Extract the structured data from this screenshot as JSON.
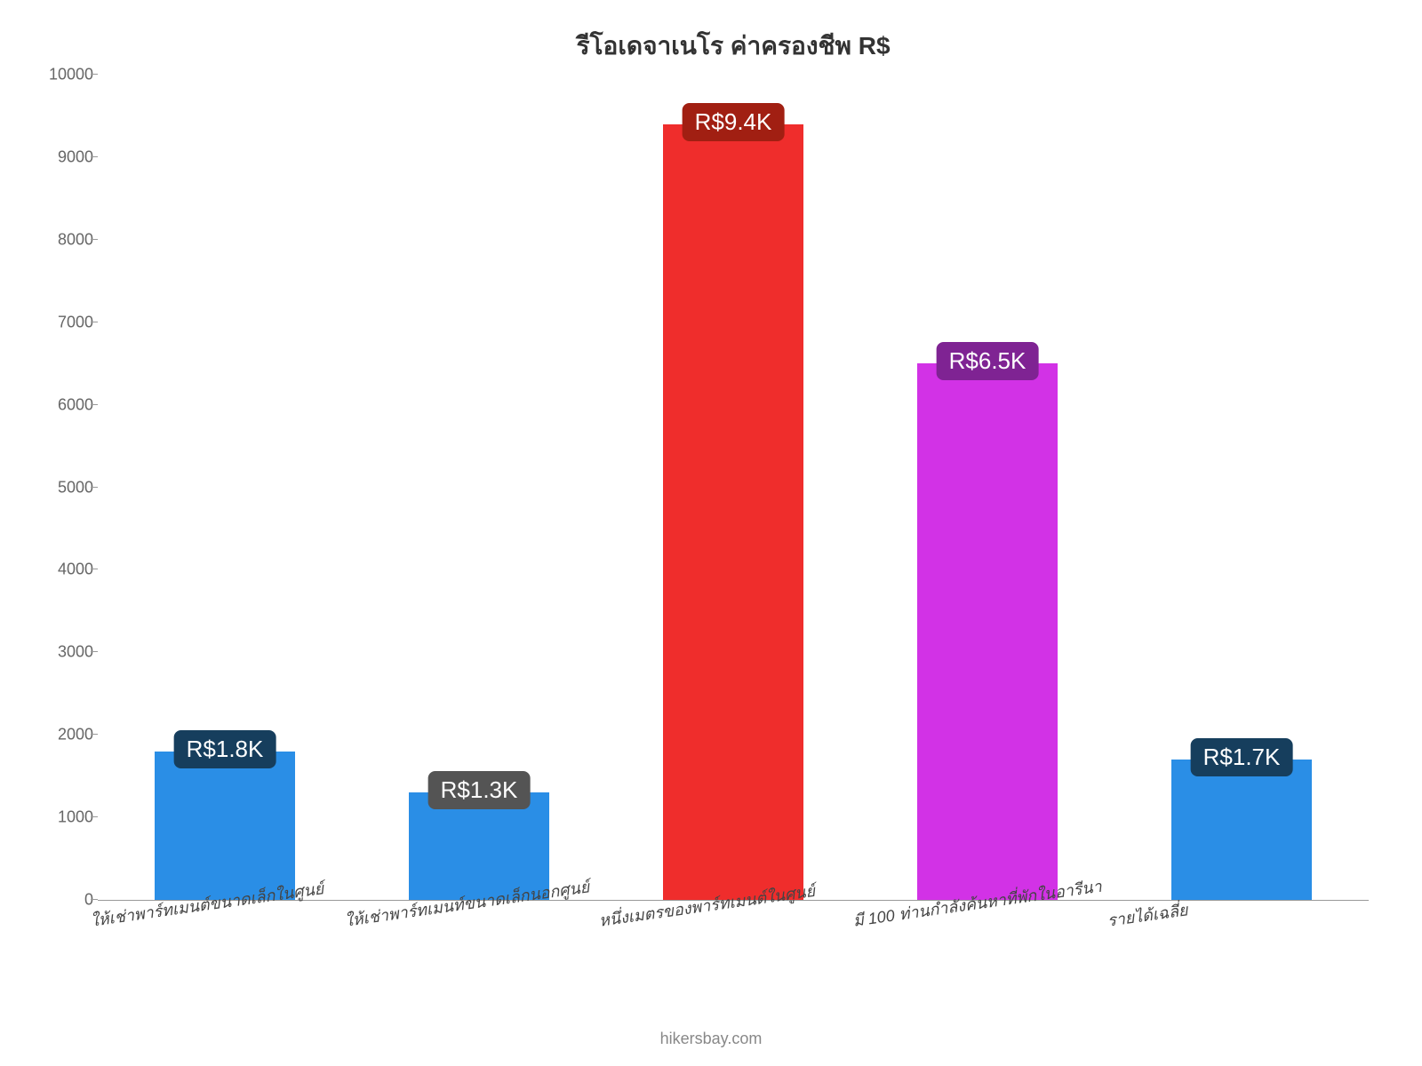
{
  "chart": {
    "type": "bar",
    "title": "รีโอเดจาเนโร ค่าครองชีพ R$",
    "title_fontsize": 28,
    "title_color": "#333333",
    "background_color": "#ffffff",
    "ylim": [
      0,
      10000
    ],
    "ytick_step": 1000,
    "ytick_labels": [
      "0",
      "1000",
      "2000",
      "3000",
      "4000",
      "5000",
      "6000",
      "7000",
      "8000",
      "9000",
      "10000"
    ],
    "ytick_fontsize": 18,
    "ytick_color": "#666666",
    "axis_line_color": "#999999",
    "bar_width_ratio": 0.55,
    "categories": [
      "ให้เช่าพาร์ทเมนต์ขนาดเล็กในศูนย์",
      "ให้เช่าพาร์ทเมนท์ขนาดเล็กนอกศูนย์",
      "หนึ่งเมตรของพาร์ทเมนต์ในศูนย์",
      "มี 100 ท่านกำลังค้นหาที่พักในอารีนา",
      "รายได้เฉลี่ย"
    ],
    "xlabel_fontsize": 18,
    "xlabel_color": "#444444",
    "values": [
      1800,
      1300,
      9400,
      6500,
      1700
    ],
    "bar_colors": [
      "#2a8ee6",
      "#2a8ee6",
      "#ef2d2c",
      "#d232e6",
      "#2a8ee6"
    ],
    "value_labels": [
      "R$1.8K",
      "R$1.3K",
      "R$9.4K",
      "R$6.5K",
      "R$1.7K"
    ],
    "value_label_fontsize": 26,
    "value_label_text_color": "#ffffff",
    "value_label_bg_colors": [
      "#163e5d",
      "#545454",
      "#a11f12",
      "#7f2393",
      "#163e5d"
    ],
    "value_label_position": "overlap_top",
    "attribution": "hikersbay.com",
    "attribution_fontsize": 18,
    "attribution_color": "#888888"
  }
}
